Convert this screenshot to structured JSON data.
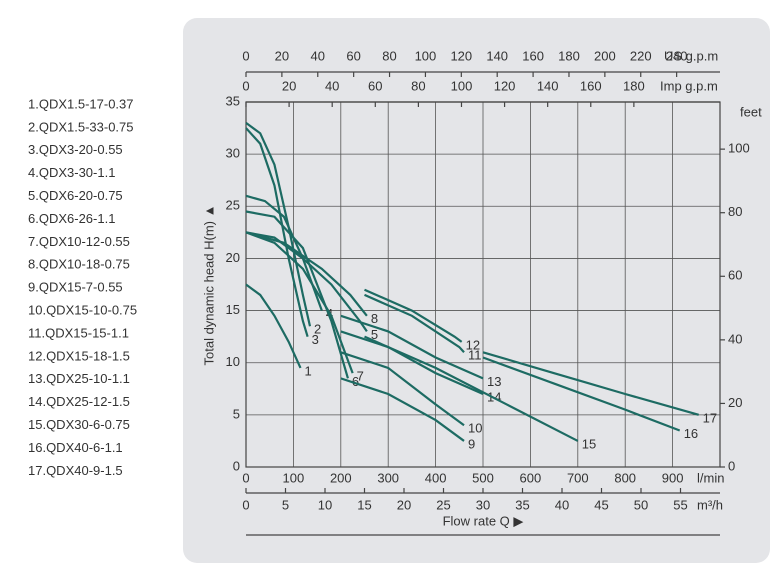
{
  "chart_data": {
    "type": "line",
    "ylabel": "Total dynamic head H(m) ▲",
    "xlabel": "Flow rate Q ▶",
    "xunit": "l/min",
    "y2unit": "feet",
    "xlim": [
      0,
      1000
    ],
    "xticks": [
      0,
      100,
      200,
      300,
      400,
      500,
      600,
      700,
      800,
      900
    ],
    "ylim": [
      0,
      35
    ],
    "yticks": [
      0,
      5,
      10,
      15,
      20,
      25,
      30,
      35
    ],
    "y2lim": [
      0,
      114.83
    ],
    "y2ticks": [
      0,
      20,
      40,
      60,
      80,
      100
    ],
    "grid": true,
    "color": "#1d6b63",
    "us_gpm": {
      "label": "US g.p.m",
      "lim": [
        0,
        264.17
      ],
      "ticks": [
        0,
        20,
        40,
        60,
        80,
        100,
        120,
        140,
        160,
        180,
        200,
        220,
        240
      ]
    },
    "imp_gpm": {
      "label": "Imp g.p.m",
      "lim": [
        0,
        219.97
      ],
      "ticks": [
        0,
        20,
        40,
        60,
        80,
        100,
        120,
        140,
        160,
        180
      ]
    },
    "m3h": {
      "label": "m³/h",
      "lim": [
        0,
        60
      ],
      "ticks": [
        0,
        5,
        10,
        15,
        20,
        25,
        30,
        35,
        40,
        45,
        50,
        55
      ]
    },
    "legend_items": [
      "1.QDX1.5-17-0.37",
      "2.QDX1.5-33-0.75",
      "3.QDX3-20-0.55",
      "4.QDX3-30-1.1",
      "5.QDX6-20-0.75",
      "6.QDX6-26-1.1",
      "7.QDX10-12-0.55",
      "8.QDX10-18-0.75",
      "9.QDX15-7-0.55",
      "10.QDX15-10-0.75",
      "11.QDX15-15-1.1",
      "12.QDX15-18-1.5",
      "13.QDX25-10-1.1",
      "14.QDX25-12-1.5",
      "15.QDX30-6-0.75",
      "16.QDX40-6-1.1",
      "17.QDX40-9-1.5"
    ],
    "series": [
      {
        "name": "1",
        "x": [
          0,
          30,
          60,
          90,
          115
        ],
        "values": [
          17.5,
          16.5,
          14.5,
          12,
          9.5
        ]
      },
      {
        "name": "2",
        "x": [
          0,
          30,
          60,
          90,
          120,
          135
        ],
        "values": [
          33,
          32,
          29,
          23,
          16.5,
          13.5
        ]
      },
      {
        "name": "3",
        "x": [
          0,
          30,
          60,
          90,
          120,
          130
        ],
        "values": [
          32.5,
          31,
          27,
          20,
          14,
          12.5
        ]
      },
      {
        "name": "4",
        "x": [
          0,
          40,
          80,
          120,
          160
        ],
        "values": [
          26,
          25.5,
          24,
          20,
          15
        ]
      },
      {
        "name": "5",
        "x": [
          0,
          60,
          120,
          180,
          240,
          255
        ],
        "values": [
          22.5,
          22,
          20,
          17.5,
          14,
          13
        ]
      },
      {
        "name": "6",
        "x": [
          0,
          60,
          120,
          180,
          215
        ],
        "values": [
          24.5,
          24,
          21,
          14,
          8.5
        ]
      },
      {
        "name": "7",
        "x": [
          0,
          60,
          120,
          180,
          225
        ],
        "values": [
          22.5,
          21.5,
          19,
          14.5,
          9
        ]
      },
      {
        "name": "8",
        "x": [
          0,
          80,
          160,
          220,
          255
        ],
        "values": [
          22.5,
          21.5,
          19,
          16.5,
          14.5
        ]
      },
      {
        "name": "9",
        "x": [
          200,
          300,
          400,
          460
        ],
        "values": [
          8.5,
          7,
          4.5,
          2.5
        ]
      },
      {
        "name": "10",
        "x": [
          200,
          300,
          400,
          460
        ],
        "values": [
          11,
          9.5,
          6,
          4
        ]
      },
      {
        "name": "11",
        "x": [
          250,
          350,
          450,
          460
        ],
        "values": [
          16.5,
          14.5,
          11.5,
          11
        ]
      },
      {
        "name": "12",
        "x": [
          250,
          350,
          440,
          455
        ],
        "values": [
          17,
          15,
          12.5,
          12
        ]
      },
      {
        "name": "13",
        "x": [
          200,
          300,
          400,
          500
        ],
        "values": [
          14.5,
          13,
          10.5,
          8.5
        ]
      },
      {
        "name": "14",
        "x": [
          200,
          300,
          400,
          500
        ],
        "values": [
          13,
          11.5,
          9,
          7
        ]
      },
      {
        "name": "15",
        "x": [
          250,
          400,
          550,
          700
        ],
        "values": [
          12.5,
          9.5,
          6,
          2.5
        ]
      },
      {
        "name": "16",
        "x": [
          500,
          650,
          800,
          915
        ],
        "values": [
          10.5,
          8,
          5.5,
          3.5
        ]
      },
      {
        "name": "17",
        "x": [
          500,
          650,
          800,
          955
        ],
        "values": [
          11,
          9,
          7,
          5
        ]
      }
    ]
  }
}
